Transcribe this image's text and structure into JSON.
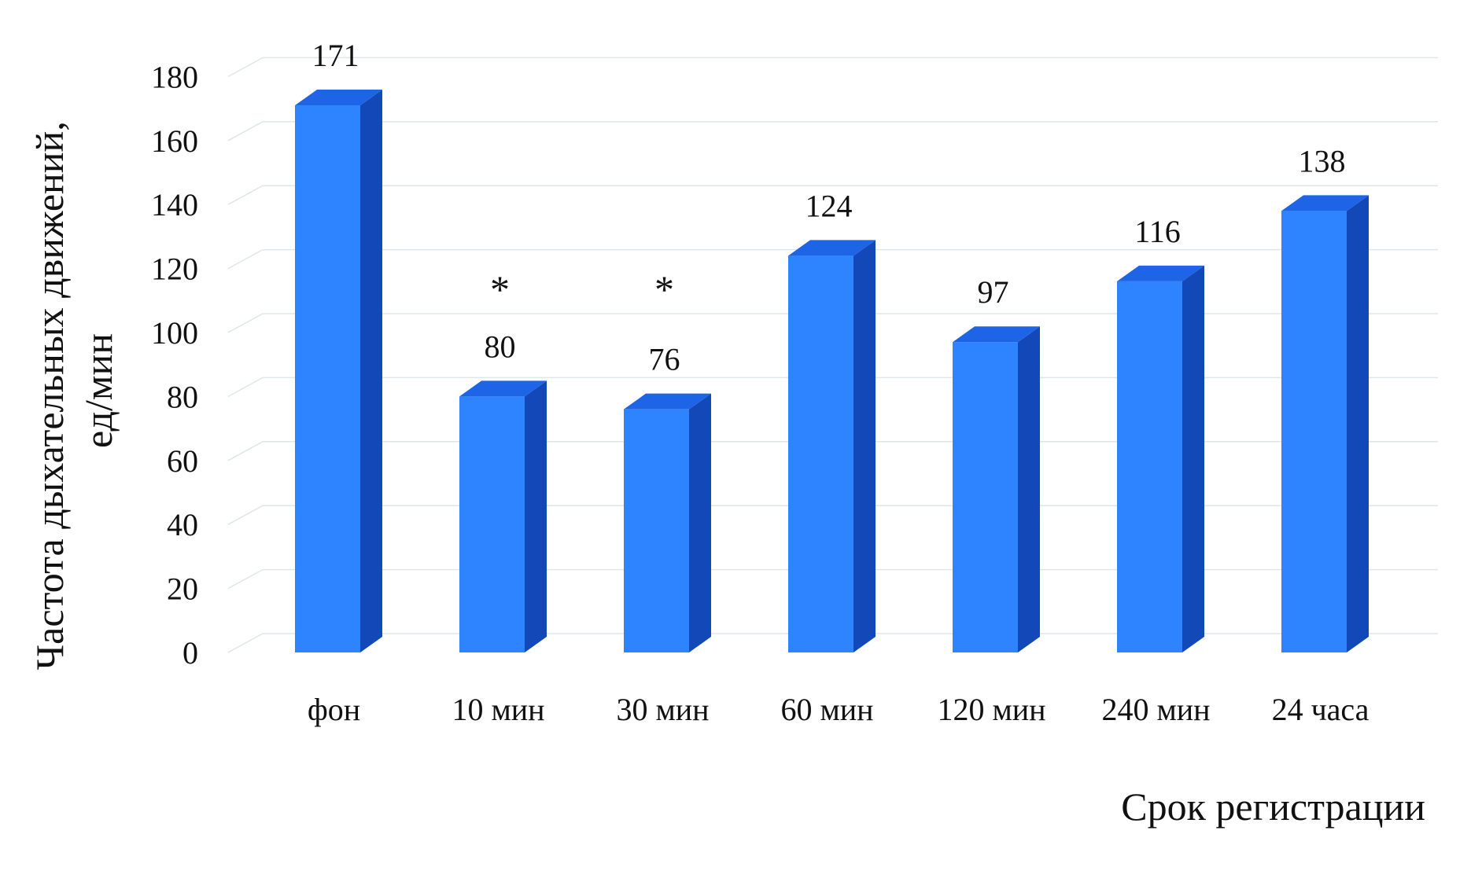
{
  "chart_data": {
    "type": "bar",
    "categories": [
      "фон",
      "10 мин",
      "30 мин",
      "60 мин",
      "120 мин",
      "240 мин",
      "24 часа"
    ],
    "values": [
      171,
      80,
      76,
      124,
      97,
      116,
      138
    ],
    "data_labels": [
      "171",
      "80",
      "76",
      "124",
      "97",
      "116",
      "138"
    ],
    "markers": [
      "",
      "*",
      "*",
      "",
      "",
      "",
      ""
    ],
    "ylabel_lines": [
      "Частота дыхательных движений,",
      "ед/мин"
    ],
    "xlabel": "Срок регистрации",
    "ylim": [
      0,
      180
    ],
    "yticks": [
      0,
      20,
      40,
      60,
      80,
      100,
      120,
      140,
      160,
      180
    ],
    "grid": true,
    "style": "3d-column",
    "colors": {
      "front": "#2e84ff",
      "side": "#1248b8",
      "top": "#1d64e6",
      "grid": "#dfe6ea"
    }
  }
}
